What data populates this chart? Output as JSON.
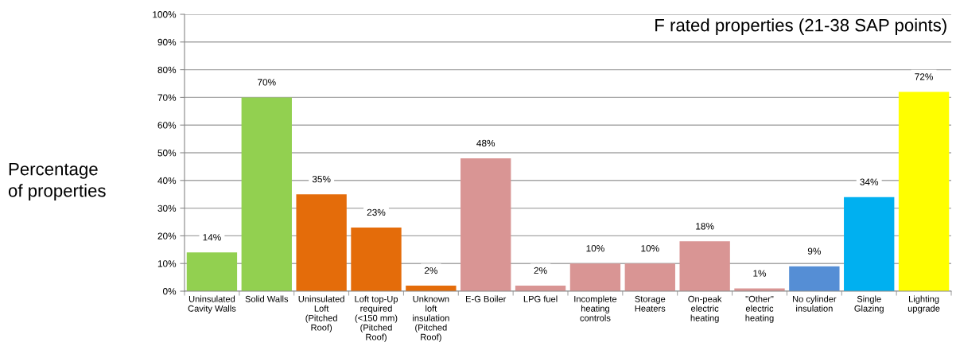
{
  "chart_data": {
    "type": "bar",
    "title": "F rated properties (21-38 SAP points)",
    "ylabel": "Percentage\nof properties",
    "categories": [
      "Uninsulated\nCavity Walls",
      "Solid Walls",
      "Uninsulated\nLoft\n(Pitched\nRoof)",
      "Loft top-Up\nrequired\n(<150 mm)\n(Pitched\nRoof)",
      "Unknown\nloft\ninsulation\n(Pitched\nRoof)",
      "E-G Boiler",
      "LPG fuel",
      "Incomplete\nheating\ncontrols",
      "Storage\nHeaters",
      "On-peak\nelectric\nheating",
      "\"Other\"\nelectric\nheating",
      "No cylinder\ninsulation",
      "Single\nGlazing",
      "Lighting\nupgrade"
    ],
    "values": [
      14,
      70,
      35,
      23,
      2,
      48,
      2,
      10,
      10,
      18,
      1,
      9,
      34,
      72
    ],
    "colors": [
      "#92d050",
      "#92d050",
      "#e46c0a",
      "#e46c0a",
      "#e46c0a",
      "#d99594",
      "#d99594",
      "#d99594",
      "#d99594",
      "#d99594",
      "#d99594",
      "#558ed5",
      "#00b0f0",
      "#ffff00"
    ],
    "value_labels": [
      "14%",
      "70%",
      "35%",
      "23%",
      "2%",
      "48%",
      "2%",
      "10%",
      "10%",
      "18%",
      "1%",
      "9%",
      "34%",
      "72%"
    ],
    "ylim": [
      0,
      100
    ],
    "yticks": [
      {
        "value": 0,
        "label": "0%"
      },
      {
        "value": 10,
        "label": "10%"
      },
      {
        "value": 20,
        "label": "20%"
      },
      {
        "value": 30,
        "label": "30%"
      },
      {
        "value": 40,
        "label": "40%"
      },
      {
        "value": 50,
        "label": "50%"
      },
      {
        "value": 60,
        "label": "60%"
      },
      {
        "value": 70,
        "label": "70%"
      },
      {
        "value": 80,
        "label": "80%"
      },
      {
        "value": 90,
        "label": "90%"
      },
      {
        "value": 100,
        "label": "100%"
      }
    ],
    "grid": "y"
  }
}
